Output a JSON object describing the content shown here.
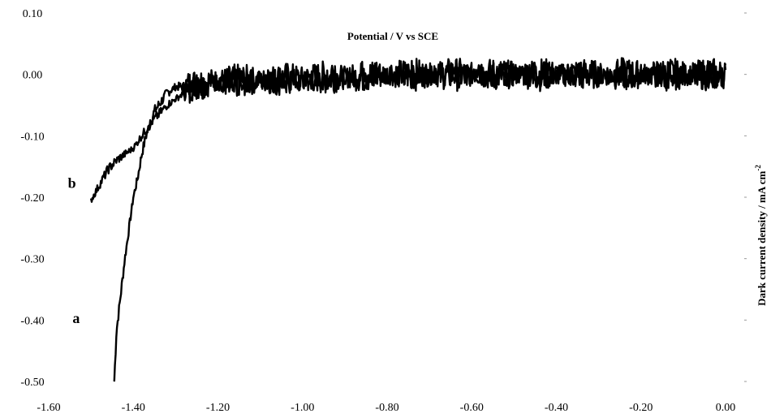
{
  "chart_data": {
    "type": "line",
    "xlabel": "Potential / V vs SCE",
    "ylabel_main": "Dark current density / mA cm",
    "ylabel_exp": "-2",
    "xlim": [
      -1.6,
      0.0
    ],
    "ylim": [
      -0.5,
      0.1
    ],
    "x_ticks": [
      -1.6,
      -1.4,
      -1.2,
      -1.0,
      -0.8,
      -0.6,
      -0.4,
      -0.2,
      0.0
    ],
    "x_tick_labels": [
      "-1.60",
      "-1.40",
      "-1.20",
      "-1.00",
      "-0.80",
      "-0.60",
      "-0.40",
      "-0.20",
      "0.00"
    ],
    "y_ticks": [
      0.1,
      0.0,
      -0.1,
      -0.2,
      -0.3,
      -0.4,
      -0.5
    ],
    "y_tick_labels": [
      "0.10",
      "0.00",
      "-0.10",
      "-0.20",
      "-0.30",
      "-0.40",
      "-0.50"
    ],
    "grid": false,
    "series": [
      {
        "name": "a",
        "x": [
          -1.445,
          -1.44,
          -1.43,
          -1.42,
          -1.41,
          -1.4,
          -1.39,
          -1.38,
          -1.37,
          -1.36,
          -1.35,
          -1.34,
          -1.33,
          -1.32,
          -1.3,
          -1.28,
          -1.25,
          -1.2,
          -1.1,
          -1.0,
          -0.9,
          -0.8,
          -0.7,
          -0.6,
          -0.5,
          -0.4,
          -0.3,
          -0.2,
          -0.1,
          0.0
        ],
        "y": [
          -0.5,
          -0.42,
          -0.36,
          -0.3,
          -0.25,
          -0.2,
          -0.17,
          -0.13,
          -0.1,
          -0.08,
          -0.06,
          -0.05,
          -0.04,
          -0.03,
          -0.02,
          -0.02,
          -0.015,
          -0.01,
          -0.01,
          -0.005,
          -0.005,
          0.0,
          0.0,
          0.0,
          0.0,
          0.0,
          0.0,
          0.0,
          0.0,
          0.0
        ]
      },
      {
        "name": "b",
        "x": [
          -1.5,
          -1.48,
          -1.46,
          -1.44,
          -1.42,
          -1.4,
          -1.38,
          -1.36,
          -1.34,
          -1.32,
          -1.3,
          -1.28,
          -1.25,
          -1.2,
          -1.1,
          -1.0,
          -0.9,
          -0.8,
          -0.7,
          -0.6,
          -0.5,
          -0.4,
          -0.3,
          -0.2,
          -0.1,
          0.0
        ],
        "y": [
          -0.205,
          -0.18,
          -0.155,
          -0.14,
          -0.13,
          -0.12,
          -0.1,
          -0.08,
          -0.065,
          -0.05,
          -0.04,
          -0.03,
          -0.02,
          -0.015,
          -0.01,
          -0.01,
          -0.005,
          0.0,
          0.0,
          0.0,
          0.0,
          0.0,
          0.0,
          0.0,
          0.0,
          0.0
        ]
      }
    ]
  }
}
